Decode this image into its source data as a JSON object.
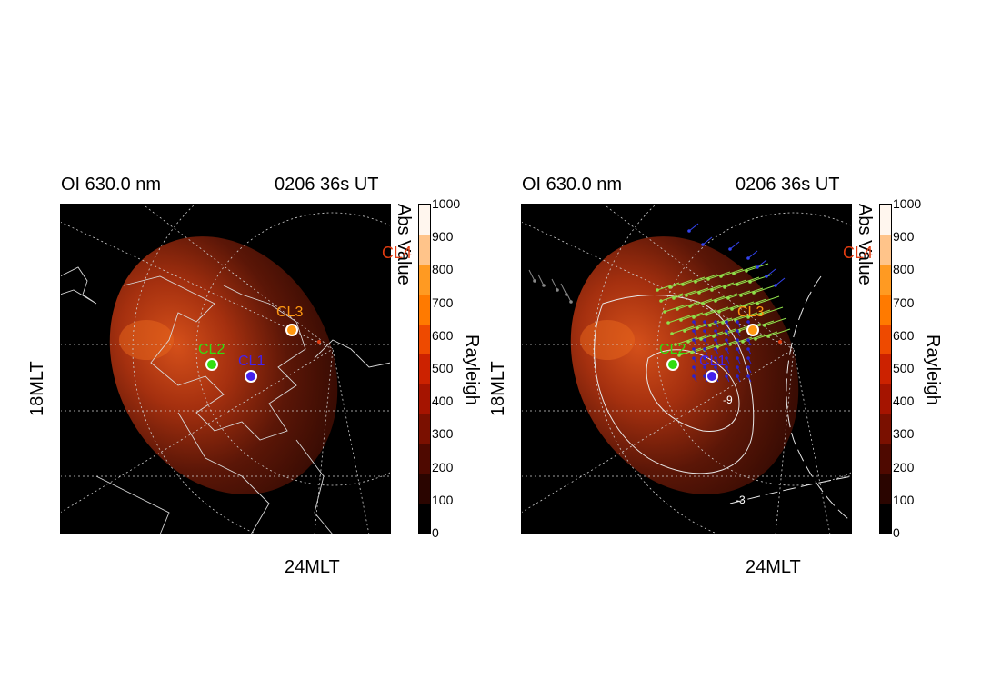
{
  "panels": [
    {
      "id": "left",
      "title": "OI 630.0 nm",
      "time": "0206 36s UT",
      "axis_left": "18MLT",
      "axis_bottom": "24MLT",
      "abs_label": "Abs Value",
      "colorbar_label": "Rayleigh",
      "colorbar_ticks": [
        "0",
        "100",
        "200",
        "300",
        "400",
        "500",
        "600",
        "700",
        "800",
        "900",
        "1000"
      ],
      "stations": [
        {
          "name": "CL1",
          "color": "#4422ee"
        },
        {
          "name": "CL2",
          "color": "#33dd11"
        },
        {
          "name": "CL3",
          "color": "#ff9911"
        },
        {
          "name": "CL4",
          "color": "#e23c10"
        }
      ]
    },
    {
      "id": "right",
      "title": "OI 630.0 nm",
      "time": "0206 36s UT",
      "axis_left": "18MLT",
      "axis_bottom": "24MLT",
      "abs_label": "Abs Value",
      "colorbar_label": "Rayleigh",
      "colorbar_ticks": [
        "0",
        "100",
        "200",
        "300",
        "400",
        "500",
        "600",
        "700",
        "800",
        "900",
        "1000"
      ],
      "contour_labels": [
        "-9",
        "-3"
      ],
      "stations": [
        {
          "name": "CL1",
          "color": "#4422ee"
        },
        {
          "name": "CL2",
          "color": "#33dd11"
        },
        {
          "name": "CL3",
          "color": "#ff9911"
        },
        {
          "name": "CL4",
          "color": "#e23c10"
        }
      ]
    }
  ],
  "colorbar_colors": [
    "#000000",
    "#2a0500",
    "#4e0900",
    "#7a1000",
    "#a51400",
    "#cc2200",
    "#ee4a00",
    "#ff7a00",
    "#ff9a22",
    "#ffc48a",
    "#fff6ee"
  ]
}
